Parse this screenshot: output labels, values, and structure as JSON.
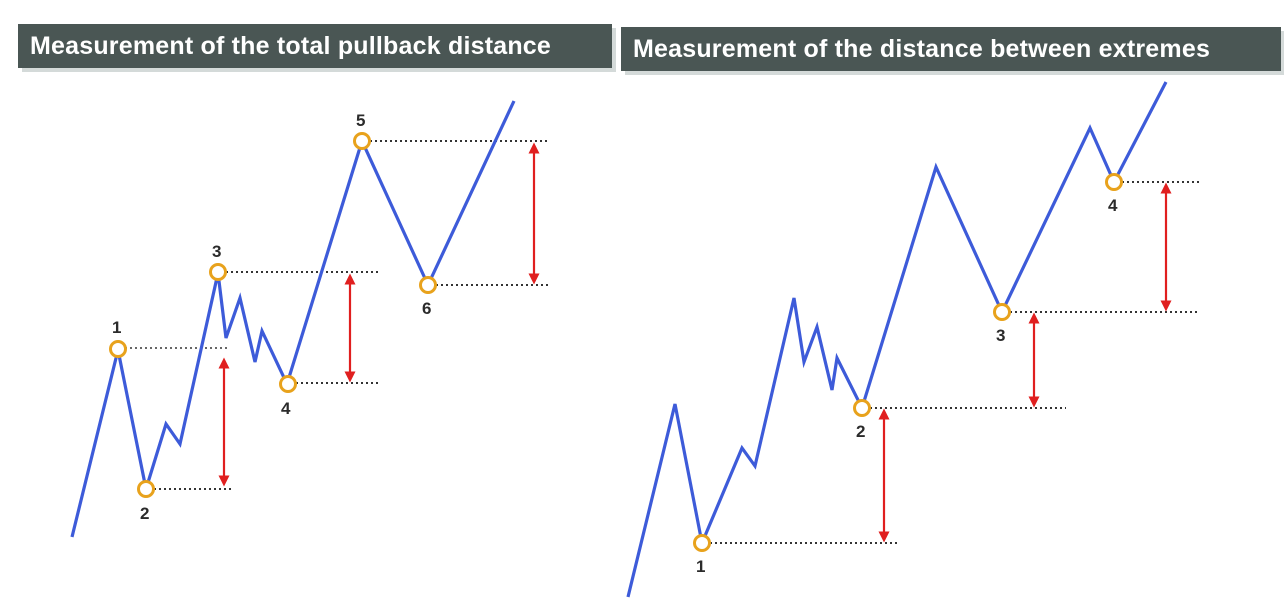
{
  "left_panel": {
    "title": "Measurement of the total pullback distance",
    "points": [
      {
        "label": "1"
      },
      {
        "label": "2"
      },
      {
        "label": "3"
      },
      {
        "label": "4"
      },
      {
        "label": "5"
      },
      {
        "label": "6"
      }
    ]
  },
  "right_panel": {
    "title": "Measurement of the distance between extremes",
    "points": [
      {
        "label": "1"
      },
      {
        "label": "2"
      },
      {
        "label": "3"
      },
      {
        "label": "4"
      }
    ]
  },
  "colors": {
    "price_line": "#3d5bd9",
    "marker_ring": "#e8a21c",
    "arrow": "#e01f1f",
    "title_bg": "#4a5654",
    "guide_line": "#333333"
  }
}
